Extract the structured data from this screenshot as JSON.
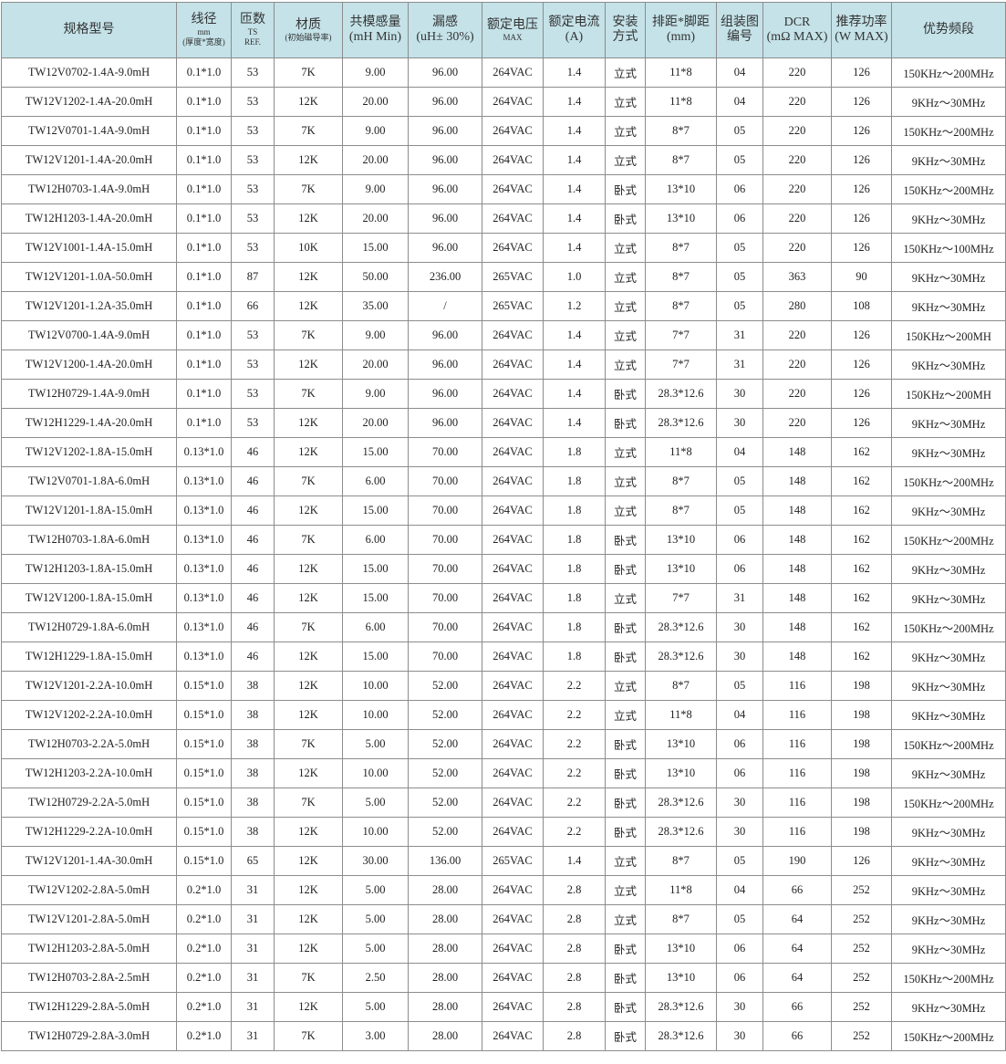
{
  "table": {
    "columns": [
      {
        "title": [
          "规格型号"
        ]
      },
      {
        "title": [
          "线径"
        ],
        "note": [
          "mm",
          "(厚度*宽度)"
        ]
      },
      {
        "title": [
          "匝数"
        ],
        "note": [
          "TS",
          "REF."
        ]
      },
      {
        "title": [
          "材质"
        ],
        "note": [
          "(初始磁导率)"
        ]
      },
      {
        "title": [
          "共模感量",
          "(mH Min)"
        ]
      },
      {
        "title": [
          "漏感",
          "(uH± 30%)"
        ]
      },
      {
        "title": [
          "额定电压"
        ],
        "note": [
          "MAX"
        ]
      },
      {
        "title": [
          "额定电流",
          "(A)"
        ]
      },
      {
        "title": [
          "安装",
          "方式"
        ]
      },
      {
        "title": [
          "排距*脚距",
          "(mm)"
        ]
      },
      {
        "title": [
          "组装图",
          "编号"
        ]
      },
      {
        "title": [
          "DCR",
          "(mΩ MAX)"
        ]
      },
      {
        "title": [
          "推荐功率",
          "(W MAX)"
        ]
      },
      {
        "title": [
          "优势频段"
        ]
      }
    ],
    "rows": [
      [
        "TW12V0702-1.4A-9.0mH",
        "0.1*1.0",
        "53",
        "7K",
        "9.00",
        "96.00",
        "264VAC",
        "1.4",
        "立式",
        "11*8",
        "04",
        "220",
        "126",
        "150KHz～200MHz"
      ],
      [
        "TW12V1202-1.4A-20.0mH",
        "0.1*1.0",
        "53",
        "12K",
        "20.00",
        "96.00",
        "264VAC",
        "1.4",
        "立式",
        "11*8",
        "04",
        "220",
        "126",
        "9KHz～30MHz"
      ],
      [
        "TW12V0701-1.4A-9.0mH",
        "0.1*1.0",
        "53",
        "7K",
        "9.00",
        "96.00",
        "264VAC",
        "1.4",
        "立式",
        "8*7",
        "05",
        "220",
        "126",
        "150KHz～200MHz"
      ],
      [
        "TW12V1201-1.4A-20.0mH",
        "0.1*1.0",
        "53",
        "12K",
        "20.00",
        "96.00",
        "264VAC",
        "1.4",
        "立式",
        "8*7",
        "05",
        "220",
        "126",
        "9KHz～30MHz"
      ],
      [
        "TW12H0703-1.4A-9.0mH",
        "0.1*1.0",
        "53",
        "7K",
        "9.00",
        "96.00",
        "264VAC",
        "1.4",
        "卧式",
        "13*10",
        "06",
        "220",
        "126",
        "150KHz～200MHz"
      ],
      [
        "TW12H1203-1.4A-20.0mH",
        "0.1*1.0",
        "53",
        "12K",
        "20.00",
        "96.00",
        "264VAC",
        "1.4",
        "卧式",
        "13*10",
        "06",
        "220",
        "126",
        "9KHz～30MHz"
      ],
      [
        "TW12V1001-1.4A-15.0mH",
        "0.1*1.0",
        "53",
        "10K",
        "15.00",
        "96.00",
        "264VAC",
        "1.4",
        "立式",
        "8*7",
        "05",
        "220",
        "126",
        "150KHz～100MHz"
      ],
      [
        "TW12V1201-1.0A-50.0mH",
        "0.1*1.0",
        "87",
        "12K",
        "50.00",
        "236.00",
        "265VAC",
        "1.0",
        "立式",
        "8*7",
        "05",
        "363",
        "90",
        "9KHz～30MHz"
      ],
      [
        "TW12V1201-1.2A-35.0mH",
        "0.1*1.0",
        "66",
        "12K",
        "35.00",
        "/",
        "265VAC",
        "1.2",
        "立式",
        "8*7",
        "05",
        "280",
        "108",
        "9KHz～30MHz"
      ],
      [
        "TW12V0700-1.4A-9.0mH",
        "0.1*1.0",
        "53",
        "7K",
        "9.00",
        "96.00",
        "264VAC",
        "1.4",
        "立式",
        "7*7",
        "31",
        "220",
        "126",
        "150KHz～200MH"
      ],
      [
        "TW12V1200-1.4A-20.0mH",
        "0.1*1.0",
        "53",
        "12K",
        "20.00",
        "96.00",
        "264VAC",
        "1.4",
        "立式",
        "7*7",
        "31",
        "220",
        "126",
        "9KHz～30MHz"
      ],
      [
        "TW12H0729-1.4A-9.0mH",
        "0.1*1.0",
        "53",
        "7K",
        "9.00",
        "96.00",
        "264VAC",
        "1.4",
        "卧式",
        "28.3*12.6",
        "30",
        "220",
        "126",
        "150KHz～200MH"
      ],
      [
        "TW12H1229-1.4A-20.0mH",
        "0.1*1.0",
        "53",
        "12K",
        "20.00",
        "96.00",
        "264VAC",
        "1.4",
        "卧式",
        "28.3*12.6",
        "30",
        "220",
        "126",
        "9KHz～30MHz"
      ],
      [
        "TW12V1202-1.8A-15.0mH",
        "0.13*1.0",
        "46",
        "12K",
        "15.00",
        "70.00",
        "264VAC",
        "1.8",
        "立式",
        "11*8",
        "04",
        "148",
        "162",
        "9KHz～30MHz"
      ],
      [
        "TW12V0701-1.8A-6.0mH",
        "0.13*1.0",
        "46",
        "7K",
        "6.00",
        "70.00",
        "264VAC",
        "1.8",
        "立式",
        "8*7",
        "05",
        "148",
        "162",
        "150KHz～200MHz"
      ],
      [
        "TW12V1201-1.8A-15.0mH",
        "0.13*1.0",
        "46",
        "12K",
        "15.00",
        "70.00",
        "264VAC",
        "1.8",
        "立式",
        "8*7",
        "05",
        "148",
        "162",
        "9KHz～30MHz"
      ],
      [
        "TW12H0703-1.8A-6.0mH",
        "0.13*1.0",
        "46",
        "7K",
        "6.00",
        "70.00",
        "264VAC",
        "1.8",
        "卧式",
        "13*10",
        "06",
        "148",
        "162",
        "150KHz～200MHz"
      ],
      [
        "TW12H1203-1.8A-15.0mH",
        "0.13*1.0",
        "46",
        "12K",
        "15.00",
        "70.00",
        "264VAC",
        "1.8",
        "卧式",
        "13*10",
        "06",
        "148",
        "162",
        "9KHz～30MHz"
      ],
      [
        "TW12V1200-1.8A-15.0mH",
        "0.13*1.0",
        "46",
        "12K",
        "15.00",
        "70.00",
        "264VAC",
        "1.8",
        "立式",
        "7*7",
        "31",
        "148",
        "162",
        "9KHz～30MHz"
      ],
      [
        "TW12H0729-1.8A-6.0mH",
        "0.13*1.0",
        "46",
        "7K",
        "6.00",
        "70.00",
        "264VAC",
        "1.8",
        "卧式",
        "28.3*12.6",
        "30",
        "148",
        "162",
        "150KHz～200MHz"
      ],
      [
        "TW12H1229-1.8A-15.0mH",
        "0.13*1.0",
        "46",
        "12K",
        "15.00",
        "70.00",
        "264VAC",
        "1.8",
        "卧式",
        "28.3*12.6",
        "30",
        "148",
        "162",
        "9KHz～30MHz"
      ],
      [
        "TW12V1201-2.2A-10.0mH",
        "0.15*1.0",
        "38",
        "12K",
        "10.00",
        "52.00",
        "264VAC",
        "2.2",
        "立式",
        "8*7",
        "05",
        "116",
        "198",
        "9KHz～30MHz"
      ],
      [
        "TW12V1202-2.2A-10.0mH",
        "0.15*1.0",
        "38",
        "12K",
        "10.00",
        "52.00",
        "264VAC",
        "2.2",
        "立式",
        "11*8",
        "04",
        "116",
        "198",
        "9KHz～30MHz"
      ],
      [
        "TW12H0703-2.2A-5.0mH",
        "0.15*1.0",
        "38",
        "7K",
        "5.00",
        "52.00",
        "264VAC",
        "2.2",
        "卧式",
        "13*10",
        "06",
        "116",
        "198",
        "150KHz～200MHz"
      ],
      [
        "TW12H1203-2.2A-10.0mH",
        "0.15*1.0",
        "38",
        "12K",
        "10.00",
        "52.00",
        "264VAC",
        "2.2",
        "卧式",
        "13*10",
        "06",
        "116",
        "198",
        "9KHz～30MHz"
      ],
      [
        "TW12H0729-2.2A-5.0mH",
        "0.15*1.0",
        "38",
        "7K",
        "5.00",
        "52.00",
        "264VAC",
        "2.2",
        "卧式",
        "28.3*12.6",
        "30",
        "116",
        "198",
        "150KHz～200MHz"
      ],
      [
        "TW12H1229-2.2A-10.0mH",
        "0.15*1.0",
        "38",
        "12K",
        "10.00",
        "52.00",
        "264VAC",
        "2.2",
        "卧式",
        "28.3*12.6",
        "30",
        "116",
        "198",
        "9KHz～30MHz"
      ],
      [
        "TW12V1201-1.4A-30.0mH",
        "0.15*1.0",
        "65",
        "12K",
        "30.00",
        "136.00",
        "265VAC",
        "1.4",
        "立式",
        "8*7",
        "05",
        "190",
        "126",
        "9KHz～30MHz"
      ],
      [
        "TW12V1202-2.8A-5.0mH",
        "0.2*1.0",
        "31",
        "12K",
        "5.00",
        "28.00",
        "264VAC",
        "2.8",
        "立式",
        "11*8",
        "04",
        "66",
        "252",
        "9KHz～30MHz"
      ],
      [
        "TW12V1201-2.8A-5.0mH",
        "0.2*1.0",
        "31",
        "12K",
        "5.00",
        "28.00",
        "264VAC",
        "2.8",
        "立式",
        "8*7",
        "05",
        "64",
        "252",
        "9KHz～30MHz"
      ],
      [
        "TW12H1203-2.8A-5.0mH",
        "0.2*1.0",
        "31",
        "12K",
        "5.00",
        "28.00",
        "264VAC",
        "2.8",
        "卧式",
        "13*10",
        "06",
        "64",
        "252",
        "9KHz～30MHz"
      ],
      [
        "TW12H0703-2.8A-2.5mH",
        "0.2*1.0",
        "31",
        "7K",
        "2.50",
        "28.00",
        "264VAC",
        "2.8",
        "卧式",
        "13*10",
        "06",
        "64",
        "252",
        "150KHz～200MHz"
      ],
      [
        "TW12H1229-2.8A-5.0mH",
        "0.2*1.0",
        "31",
        "12K",
        "5.00",
        "28.00",
        "264VAC",
        "2.8",
        "卧式",
        "28.3*12.6",
        "30",
        "66",
        "252",
        "9KHz～30MHz"
      ],
      [
        "TW12H0729-2.8A-3.0mH",
        "0.2*1.0",
        "31",
        "7K",
        "3.00",
        "28.00",
        "264VAC",
        "2.8",
        "卧式",
        "28.3*12.6",
        "30",
        "66",
        "252",
        "150KHz～200MHz"
      ]
    ]
  }
}
